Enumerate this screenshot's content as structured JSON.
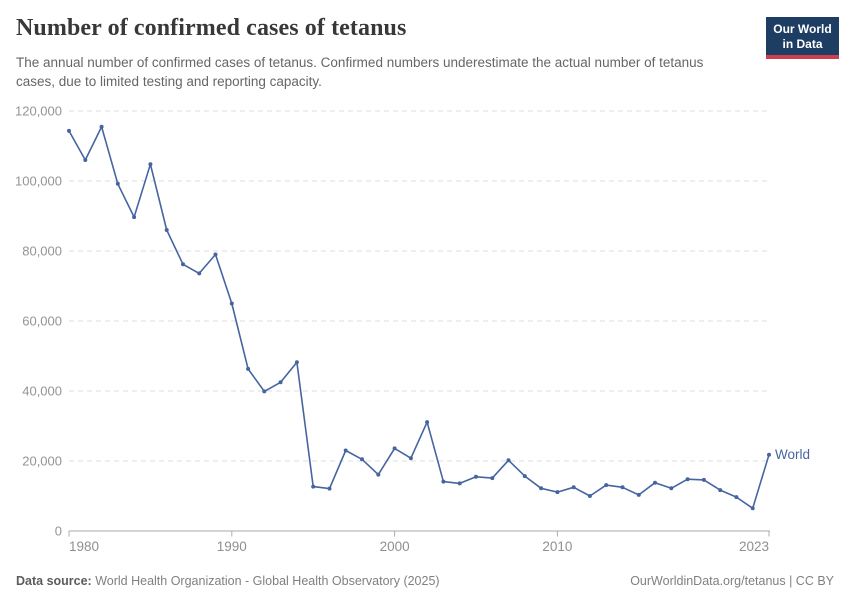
{
  "header": {
    "title": "Number of confirmed cases of tetanus",
    "subtitle": "The annual number of confirmed cases of tetanus. Confirmed numbers underestimate the actual number of tetanus cases, due to limited testing and reporting capacity.",
    "logo": {
      "line1": "Our World",
      "line2": "in Data",
      "bg_color": "#1d3d63",
      "accent_color": "#cf3e4e"
    }
  },
  "chart_data": {
    "type": "line",
    "title": "Number of confirmed cases of tetanus",
    "xlabel": "",
    "ylabel": "",
    "xlim": [
      1980,
      2023
    ],
    "ylim": [
      0,
      120000
    ],
    "x_ticks": [
      1980,
      1990,
      2000,
      2010,
      2023
    ],
    "y_ticks": [
      0,
      20000,
      40000,
      60000,
      80000,
      100000,
      120000
    ],
    "grid": "horizontal-dashed",
    "legend_position": "end-of-line-label",
    "series": [
      {
        "name": "World",
        "color": "#4665a0",
        "x": [
          1980,
          1981,
          1982,
          1983,
          1984,
          1985,
          1986,
          1987,
          1988,
          1989,
          1990,
          1991,
          1992,
          1993,
          1994,
          1995,
          1996,
          1997,
          1998,
          1999,
          2000,
          2001,
          2002,
          2003,
          2004,
          2005,
          2006,
          2007,
          2008,
          2009,
          2010,
          2011,
          2012,
          2013,
          2014,
          2015,
          2016,
          2017,
          2018,
          2019,
          2020,
          2021,
          2022,
          2023
        ],
        "values": [
          114300,
          106000,
          115500,
          99200,
          89700,
          104800,
          86000,
          76200,
          73600,
          79000,
          65000,
          46300,
          39900,
          42500,
          48200,
          12700,
          12100,
          23000,
          20500,
          16100,
          23600,
          20800,
          31100,
          14100,
          13600,
          15500,
          15100,
          20200,
          15700,
          12200,
          11100,
          12500,
          10000,
          13100,
          12500,
          10300,
          13800,
          12200,
          14800,
          14600,
          11700,
          9700,
          6500,
          21800
        ]
      }
    ]
  },
  "footer": {
    "source_label": "Data source:",
    "source_text": " World Health Organization - Global Health Observatory (2025)",
    "link_text": "OurWorldinData.org/tetanus | CC BY"
  }
}
